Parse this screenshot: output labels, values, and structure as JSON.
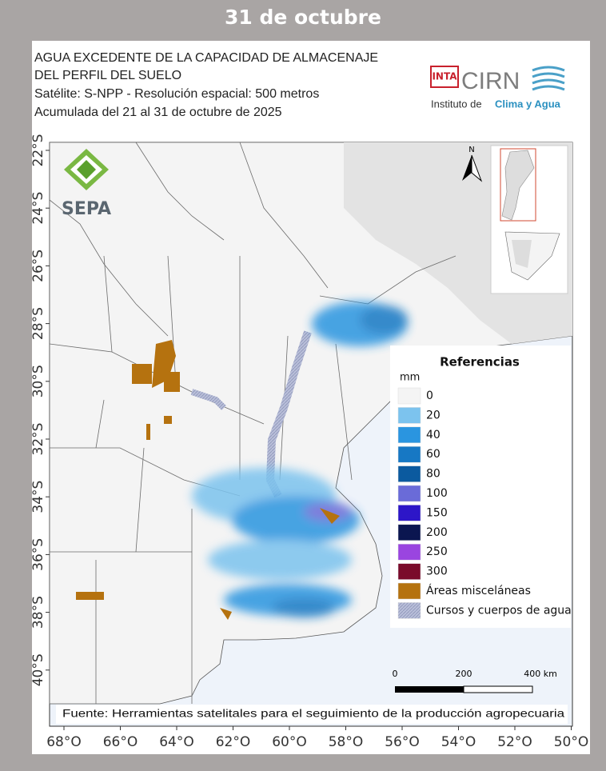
{
  "header": {
    "date": "31 de octubre"
  },
  "map": {
    "title_lines": [
      "AGUA EXCEDENTE DE LA CAPACIDAD DE ALMACENAJE",
      "DEL PERFIL DEL SUELO",
      "Satélite: S-NPP - Resolución espacial: 500 metros",
      "Acumulada del 21 al 31 de octubre de 2025"
    ],
    "logos": {
      "inta": "INTA",
      "cirn": "CIRN",
      "institute_prefix": "Instituto de",
      "institute_name": "Clima y Agua",
      "sepa": "SEPA"
    },
    "north_label": "N",
    "latitude_labels": [
      "22°S",
      "24°S",
      "26°S",
      "28°S",
      "30°S",
      "32°S",
      "34°S",
      "36°S",
      "38°S",
      "40°S"
    ],
    "longitude_labels": [
      "68°O",
      "66°O",
      "64°O",
      "62°O",
      "60°O",
      "58°O",
      "56°O",
      "54°O",
      "52°O",
      "50°O"
    ],
    "legend": {
      "title": "Referencias",
      "unit": "mm",
      "items": [
        {
          "label": 0,
          "color": "#f4f4f4"
        },
        {
          "label": 20,
          "color": "#7cc3ee"
        },
        {
          "label": 40,
          "color": "#2a95e0"
        },
        {
          "label": 60,
          "color": "#1778c4"
        },
        {
          "label": 80,
          "color": "#0b5a9f"
        },
        {
          "label": 100,
          "color": "#6a6bd8"
        },
        {
          "label": 150,
          "color": "#2d16c8"
        },
        {
          "label": 200,
          "color": "#0b1650"
        },
        {
          "label": 250,
          "color": "#9a45e0"
        },
        {
          "label": 300,
          "color": "#7a0b2b"
        },
        {
          "label": "Áreas misceláneas",
          "color": "#b5720f"
        },
        {
          "label": "Cursos y cuerpos de agua",
          "color": "#b9bfd9"
        }
      ]
    },
    "scale_bar": {
      "labels": [
        "0",
        "200",
        "400 km"
      ]
    },
    "source": "Fuente: Herramientas satelitales para el seguimiento de la producción agropecuaria"
  }
}
